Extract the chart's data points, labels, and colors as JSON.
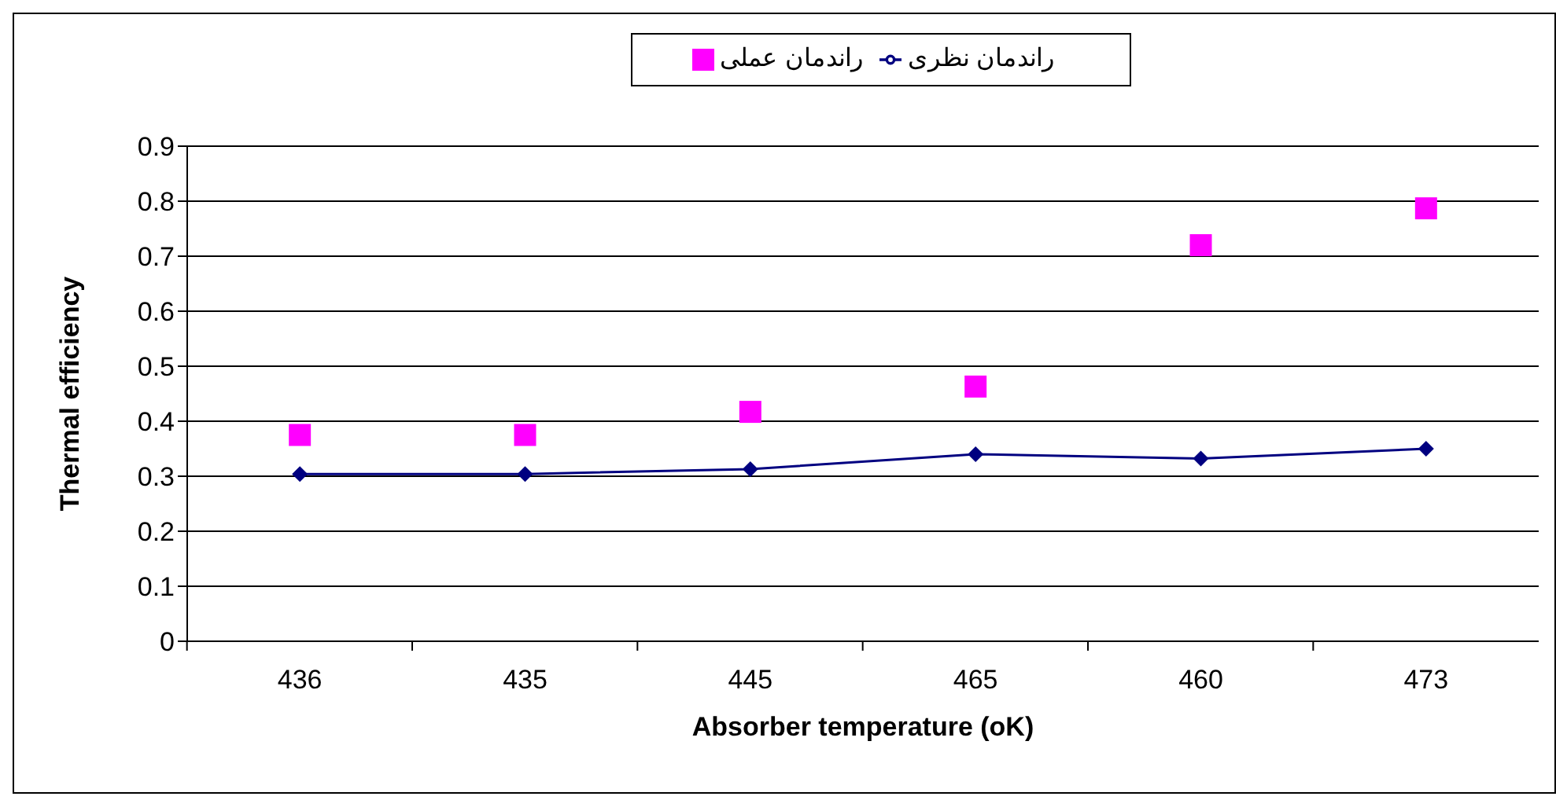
{
  "chart_data": {
    "type": "line",
    "xlabel": "Absorber temperature (oK)",
    "ylabel": "Thermal efficiency",
    "categories": [
      "436",
      "435",
      "445",
      "465",
      "460",
      "473"
    ],
    "series": [
      {
        "name": "راندمان نظری",
        "type": "line",
        "marker": "diamond",
        "color": "#000080",
        "values": [
          0.304,
          0.304,
          0.313,
          0.34,
          0.332,
          0.35
        ]
      },
      {
        "name": "راندمان عملی",
        "type": "scatter",
        "marker": "square",
        "color": "#ff00ff",
        "values": [
          0.375,
          0.375,
          0.417,
          0.463,
          0.72,
          0.787
        ]
      }
    ],
    "ylim": [
      0,
      0.9
    ],
    "yticks": [
      0,
      0.1,
      0.2,
      0.3,
      0.4,
      0.5,
      0.6,
      0.7,
      0.8,
      0.9
    ],
    "grid": "y",
    "legend": "top"
  }
}
